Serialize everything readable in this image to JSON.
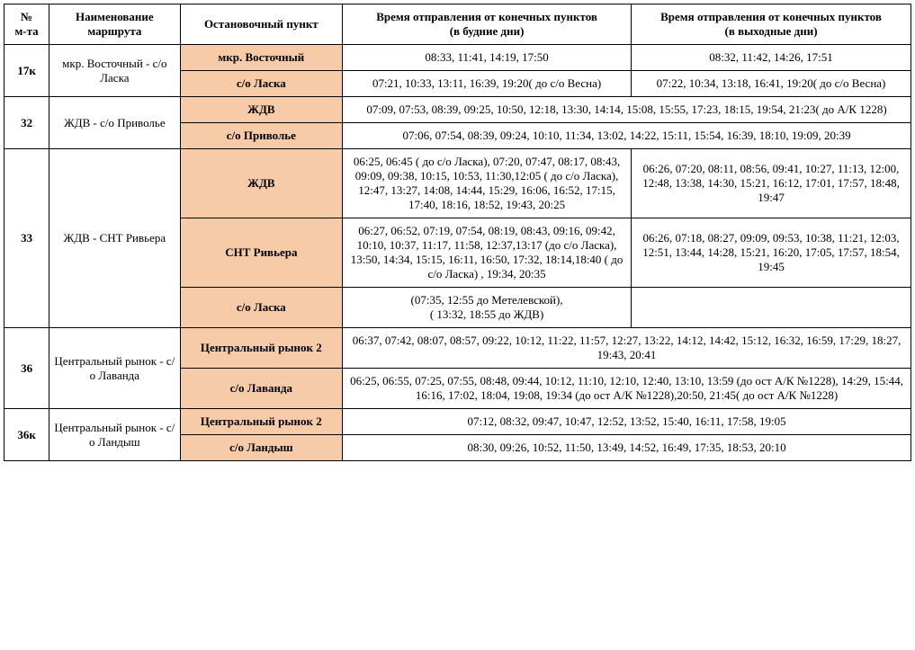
{
  "header": {
    "col_num_l1": "№",
    "col_num_l2": "м-та",
    "col_name_l1": "Наименование",
    "col_name_l2": "маршрута",
    "col_stop": "Остановочный пункт",
    "col_weekday_l1": "Время отправления от конечных пунктов",
    "col_weekday_l2": "(в будние дни)",
    "col_weekend_l1": "Время отправления от конечных пунктов",
    "col_weekend_l2": "(в выходные дни)"
  },
  "routes": {
    "r17k": {
      "num": "17к",
      "name": "мкр. Восточный - с/о Ласка",
      "stop1": "мкр. Восточный",
      "stop1_wk": "08:33, 11:41, 14:19, 17:50",
      "stop1_we": "08:32, 11:42, 14:26, 17:51",
      "stop2": "с/о Ласка",
      "stop2_wk": "07:21, 10:33, 13:11, 16:39, 19:20( до с/о Весна)",
      "stop2_we": "07:22, 10:34, 13:18, 16:41, 19:20( до с/о Весна)"
    },
    "r32": {
      "num": "32",
      "name": "ЖДВ - с/о Приволье",
      "stop1": "ЖДВ",
      "stop1_both": "07:09, 07:53, 08:39, 09:25, 10:50, 12:18, 13:30, 14:14, 15:08, 15:55, 17:23, 18:15, 19:54, 21:23( до А/К 1228)",
      "stop2": "с/о Приволье",
      "stop2_both": "07:06, 07:54, 08:39, 09:24, 10:10, 11:34, 13:02, 14:22, 15:11, 15:54, 16:39, 18:10, 19:09, 20:39"
    },
    "r33": {
      "num": "33",
      "name": "ЖДВ - СНТ Ривьера",
      "stop1": "ЖДВ",
      "stop1_wk": "06:25, 06:45 ( до с/о Ласка), 07:20, 07:47, 08:17, 08:43, 09:09, 09:38, 10:15, 10:53, 11:30,12:05 ( до с/о Ласка), 12:47, 13:27, 14:08, 14:44, 15:29, 16:06, 16:52, 17:15, 17:40, 18:16, 18:52, 19:43, 20:25",
      "stop1_we": "06:26, 07:20, 08:11, 08:56, 09:41, 10:27, 11:13, 12:00, 12:48, 13:38, 14:30, 15:21, 16:12, 17:01, 17:57, 18:48, 19:47",
      "stop2": "СНТ Ривьера",
      "stop2_wk": "06:27, 06:52, 07:19, 07:54, 08:19, 08:43, 09:16, 09:42, 10:10, 10:37, 11:17, 11:58, 12:37,13:17 (до с/о Ласка), 13:50, 14:34, 15:15, 16:11, 16:50, 17:32, 18:14,18:40 ( до с/о Ласка) , 19:34, 20:35",
      "stop2_we": "06:26, 07:18, 08:27, 09:09, 09:53, 10:38, 11:21, 12:03, 12:51, 13:44, 14:28, 15:21, 16:20, 17:05, 17:57, 18:54, 19:45",
      "stop3": "с/о Ласка",
      "stop3_wk_l1": "(07:35, 12:55  до Метелевской),",
      "stop3_wk_l2": "( 13:32, 18:55 до ЖДВ)",
      "stop3_we": ""
    },
    "r36": {
      "num": "36",
      "name": "Центральный рынок - с/о Лаванда",
      "stop1": "Центральный рынок 2",
      "stop1_both": "06:37, 07:42, 08:07, 08:57, 09:22, 10:12, 11:22, 11:57, 12:27, 13:22, 14:12, 14:42, 15:12, 16:32, 16:59, 17:29, 18:27, 19:43, 20:41",
      "stop2": "с/о Лаванда",
      "stop2_both": "06:25, 06:55, 07:25, 07:55, 08:48, 09:44, 10:12, 11:10, 12:10, 12:40, 13:10, 13:59 (до ост А/К №1228), 14:29, 15:44, 16:16, 17:02, 18:04, 19:08, 19:34 (до ост А/К №1228),20:50, 21:45( до ост А/К №1228)"
    },
    "r36k": {
      "num": "36к",
      "name": "Центральный рынок - с/о Ландыш",
      "stop1": "Центральный рынок 2",
      "stop1_both": "07:12, 08:32, 09:47, 10:47, 12:52, 13:52, 15:40, 16:11, 17:58, 19:05",
      "stop2": "с/о Ландыш",
      "stop2_both": "08:30, 09:26, 10:52, 11:50, 13:49, 14:52, 16:49, 17:35, 18:53, 20:10"
    }
  }
}
